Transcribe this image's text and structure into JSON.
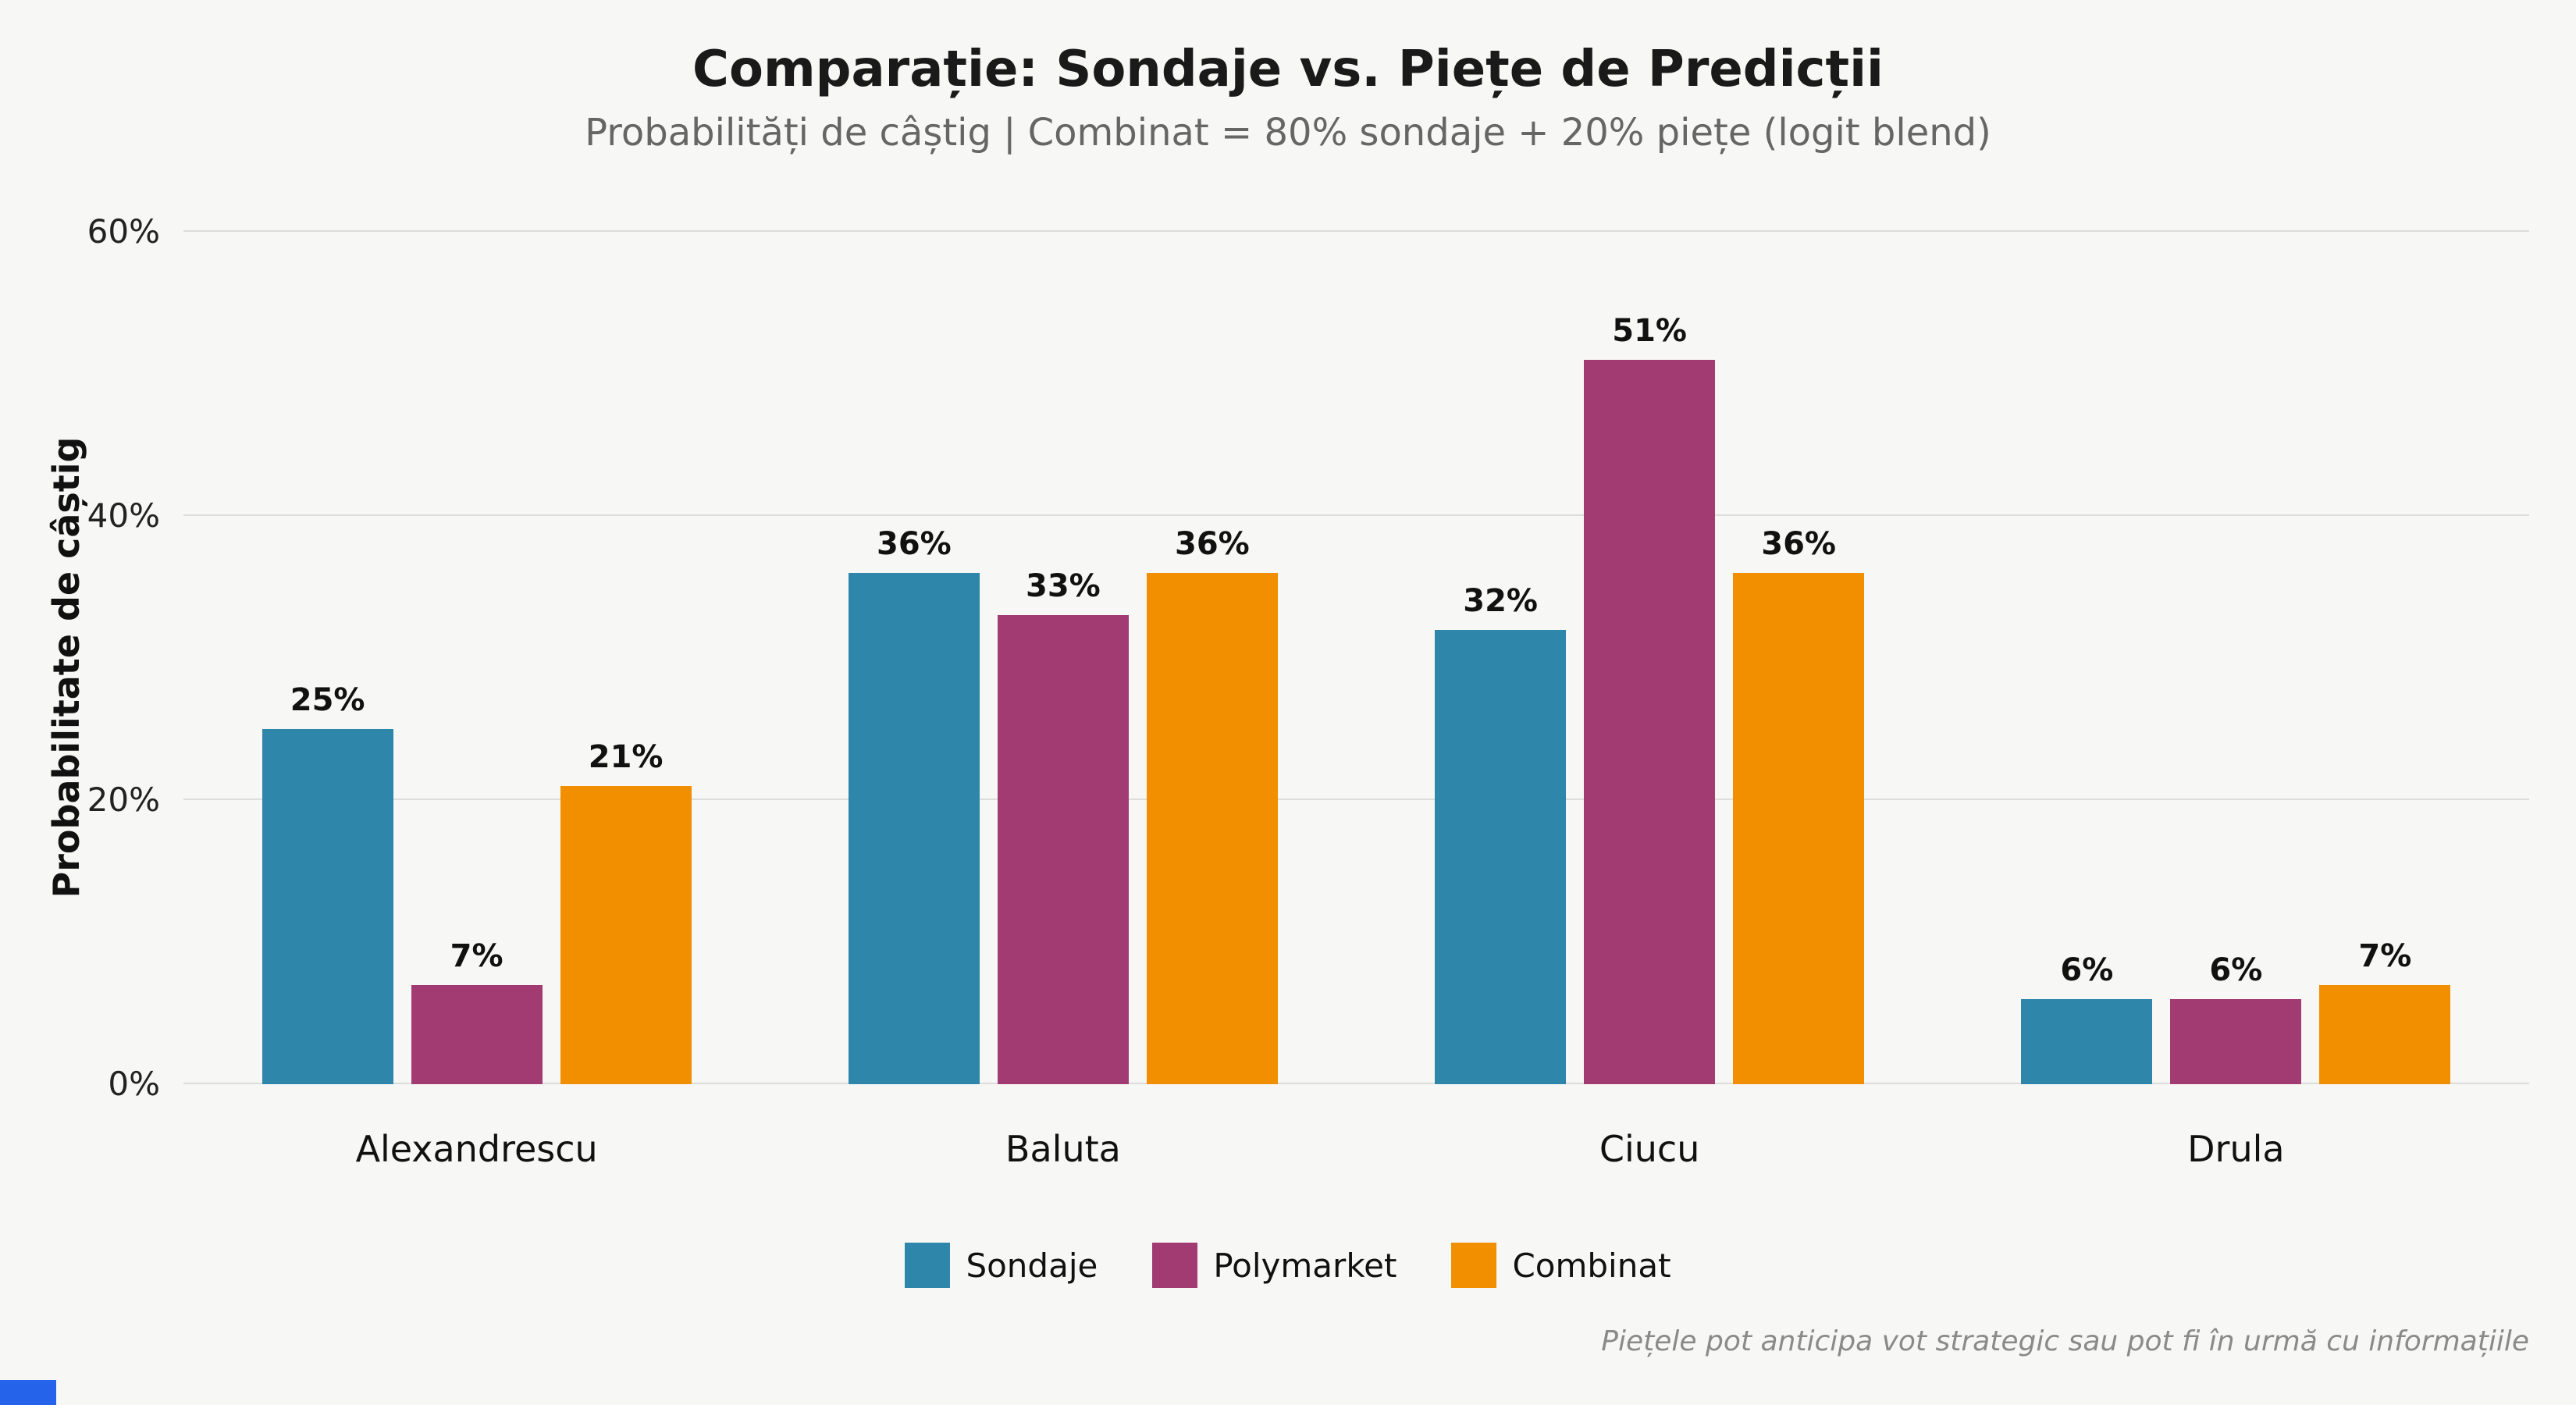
{
  "title": "Comparație: Sondaje vs. Piețe de Predicții",
  "subtitle": "Probabilități de câștig | Combinat = 80% sondaje + 20% piețe (logit blend)",
  "ylabel": "Probabilitate de câștig",
  "footnote": "Piețele pot anticipa vot strategic sau pot fi în urmă cu informațiile",
  "colors": {
    "background": "#f7f7f5",
    "gridline": "#ddddda",
    "sondaje": "#2E86AB",
    "polymarket": "#A23B72",
    "combinat": "#F18F01"
  },
  "chart_data": {
    "type": "bar",
    "categories": [
      "Alexandrescu",
      "Baluta",
      "Ciucu",
      "Drula"
    ],
    "series": [
      {
        "name": "Sondaje",
        "color": "#2E86AB",
        "values": [
          25,
          36,
          32,
          6
        ]
      },
      {
        "name": "Polymarket",
        "color": "#A23B72",
        "values": [
          7,
          33,
          51,
          6
        ]
      },
      {
        "name": "Combinat",
        "color": "#F18F01",
        "values": [
          21,
          36,
          36,
          7
        ]
      }
    ],
    "value_label_suffix": "%",
    "yticks": [
      0,
      20,
      40,
      60
    ],
    "ytick_labels": [
      "0%",
      "20%",
      "40%",
      "60%"
    ],
    "ylim": [
      0,
      60
    ],
    "xlabel": "",
    "grid": true,
    "legend_position": "bottom"
  }
}
